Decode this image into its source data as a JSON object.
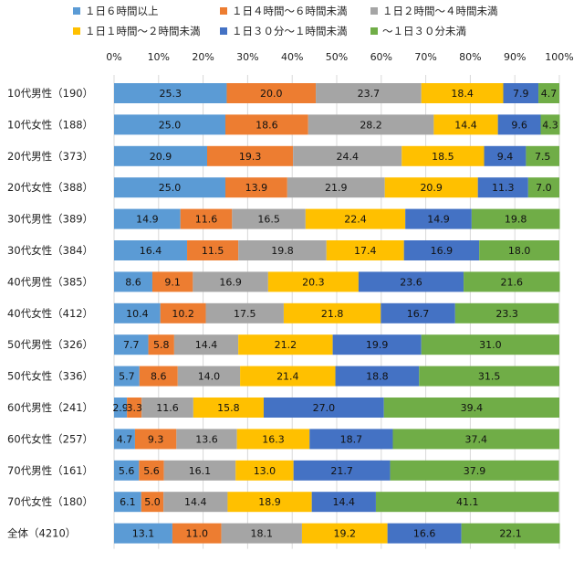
{
  "chart_data": {
    "type": "bar",
    "orientation": "horizontal",
    "stacked": true,
    "percent": true,
    "xlim": [
      0,
      100
    ],
    "ticks": [
      "0%",
      "10%",
      "20%",
      "30%",
      "40%",
      "50%",
      "60%",
      "70%",
      "80%",
      "90%",
      "100%"
    ],
    "grid": true,
    "legend_position": "top",
    "categories": [
      "10代男性（190）",
      "10代女性（188）",
      "20代男性（373）",
      "20代女性（388）",
      "30代男性（389）",
      "30代女性（384）",
      "40代男性（385）",
      "40代女性（412）",
      "50代男性（326）",
      "50代女性（336）",
      "60代男性（241）",
      "60代女性（257）",
      "70代男性（161）",
      "70代女性（180）",
      "全体（4210）"
    ],
    "series": [
      {
        "name": "１日６時間以上",
        "color": "#5b9bd5",
        "values": [
          25.3,
          25.0,
          20.9,
          25.0,
          14.9,
          16.4,
          8.6,
          10.4,
          7.7,
          5.7,
          2.9,
          4.7,
          5.6,
          6.1,
          13.1
        ]
      },
      {
        "name": "１日４時間～６時間未満",
        "color": "#ed7d31",
        "values": [
          20.0,
          18.6,
          19.3,
          13.9,
          11.6,
          11.5,
          9.1,
          10.2,
          5.8,
          8.6,
          3.3,
          9.3,
          5.6,
          5.0,
          11.0
        ]
      },
      {
        "name": "１日２時間～４時間未満",
        "color": "#a5a5a5",
        "values": [
          23.7,
          28.2,
          24.4,
          21.9,
          16.5,
          19.8,
          16.9,
          17.5,
          14.4,
          14.0,
          11.6,
          13.6,
          16.1,
          14.4,
          18.1
        ]
      },
      {
        "name": "１日１時間～２時間未満",
        "color": "#ffc000",
        "values": [
          18.4,
          14.4,
          18.5,
          20.9,
          22.4,
          17.4,
          20.3,
          21.8,
          21.2,
          21.4,
          15.8,
          16.3,
          13.0,
          18.9,
          19.2
        ]
      },
      {
        "name": "１日３０分～１時間未満",
        "color": "#4472c4",
        "values": [
          7.9,
          9.6,
          9.4,
          11.3,
          14.9,
          16.9,
          23.6,
          16.7,
          19.9,
          18.8,
          27.0,
          18.7,
          21.7,
          14.4,
          16.6
        ]
      },
      {
        "name": "～１日３０分未満",
        "color": "#70ad47",
        "values": [
          4.7,
          4.3,
          7.5,
          7.0,
          19.8,
          18.0,
          21.6,
          23.3,
          31.0,
          31.5,
          39.4,
          37.4,
          37.9,
          41.1,
          22.1
        ]
      }
    ]
  }
}
